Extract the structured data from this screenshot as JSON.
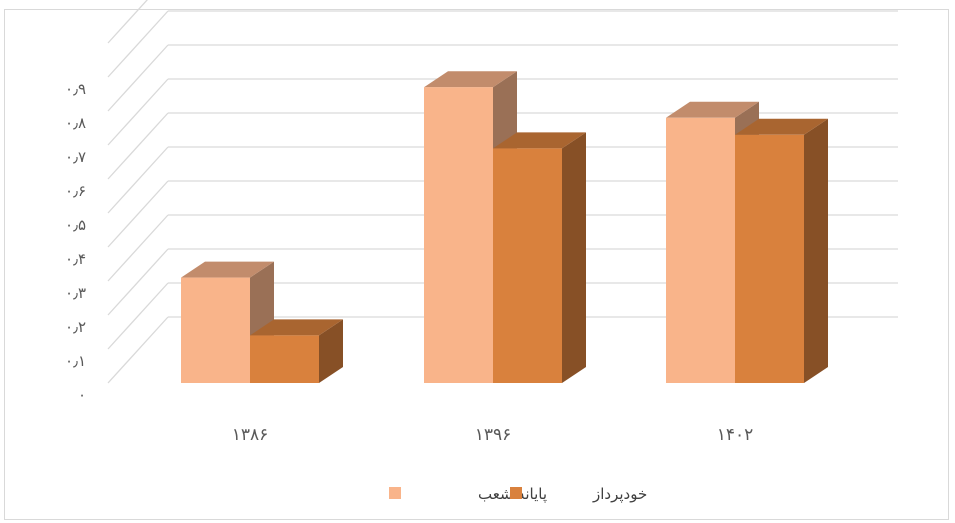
{
  "chart_data": {
    "type": "bar",
    "categories": [
      "۱۳۸۶",
      "۱۳۹۶",
      "۱۴۰۲"
    ],
    "series": [
      {
        "name": "پایانه شعب",
        "values": [
          0.31,
          0.87,
          0.78
        ],
        "color": "#f9b48a"
      },
      {
        "name": "خودپرداز",
        "values": [
          0.14,
          0.69,
          0.73
        ],
        "color": "#d9813d"
      }
    ],
    "yticks": [
      "۰",
      "۰٫۱",
      "۰٫۲",
      "۰٫۳",
      "۰٫۴",
      "۰٫۵",
      "۰٫۶",
      "۰٫۷",
      "۰٫۸",
      "۰٫۹"
    ],
    "ylim": [
      0,
      1
    ],
    "grid": true,
    "legend_position": "bottom",
    "style": "3d-clustered-column"
  }
}
